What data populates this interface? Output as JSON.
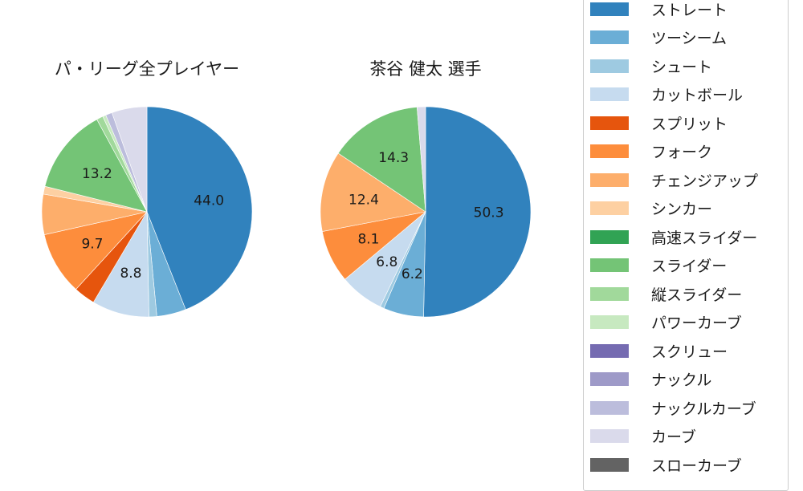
{
  "chart_data": [
    {
      "type": "pie",
      "title": "パ・リーグ全プレイヤー",
      "labels": [
        "ストレート",
        "ツーシーム",
        "シュート",
        "カットボール",
        "スプリット",
        "フォーク",
        "チェンジアップ",
        "シンカー",
        "高速スライダー",
        "スライダー",
        "縦スライダー",
        "パワーカーブ",
        "スクリュー",
        "ナックル",
        "ナックルカーブ",
        "カーブ",
        "スローカーブ"
      ],
      "values": [
        44.0,
        4.5,
        1.2,
        8.8,
        3.3,
        9.7,
        6.2,
        1.2,
        0.0,
        13.2,
        1.0,
        0.5,
        0.0,
        0.0,
        1.0,
        5.4,
        0.0
      ],
      "shown_labels": {
        "ストレート": "44.0",
        "カットボール": "8.8",
        "フォーク": "9.7",
        "スライダー": "13.2"
      },
      "start_angle": 90,
      "direction": "clockwise"
    },
    {
      "type": "pie",
      "title": "茶谷 健太  選手",
      "labels": [
        "ストレート",
        "ツーシーム",
        "シュート",
        "カットボール",
        "スプリット",
        "フォーク",
        "チェンジアップ",
        "シンカー",
        "高速スライダー",
        "スライダー",
        "縦スライダー",
        "パワーカーブ",
        "スクリュー",
        "ナックル",
        "ナックルカーブ",
        "カーブ",
        "スローカーブ"
      ],
      "values": [
        50.3,
        6.2,
        0.6,
        6.8,
        0.0,
        8.1,
        12.4,
        0.0,
        0.0,
        14.3,
        0.0,
        0.0,
        0.0,
        0.0,
        0.0,
        1.3,
        0.0
      ],
      "shown_labels": {
        "ストレート": "50.3",
        "ツーシーム": "6.2",
        "カットボール": "6.8",
        "フォーク": "8.1",
        "チェンジアップ": "12.4",
        "スライダー": "14.3"
      },
      "start_angle": 90,
      "direction": "clockwise"
    }
  ],
  "titles": {
    "left": "パ・リーグ全プレイヤー",
    "right": "茶谷 健太  選手"
  },
  "legend": [
    {
      "label": "ストレート",
      "color": "#3182bd"
    },
    {
      "label": "ツーシーム",
      "color": "#6baed6"
    },
    {
      "label": "シュート",
      "color": "#9ecae1"
    },
    {
      "label": "カットボール",
      "color": "#c6dbef"
    },
    {
      "label": "スプリット",
      "color": "#e6550d"
    },
    {
      "label": "フォーク",
      "color": "#fd8d3c"
    },
    {
      "label": "チェンジアップ",
      "color": "#fdae6b"
    },
    {
      "label": "シンカー",
      "color": "#fdd0a2"
    },
    {
      "label": "高速スライダー",
      "color": "#31a354"
    },
    {
      "label": "スライダー",
      "color": "#74c476"
    },
    {
      "label": "縦スライダー",
      "color": "#a1d99b"
    },
    {
      "label": "パワーカーブ",
      "color": "#c7e9c0"
    },
    {
      "label": "スクリュー",
      "color": "#756bb1"
    },
    {
      "label": "ナックル",
      "color": "#9e9ac8"
    },
    {
      "label": "ナックルカーブ",
      "color": "#bcbddc"
    },
    {
      "label": "カーブ",
      "color": "#dadaeb"
    },
    {
      "label": "スローカーブ",
      "color": "#636363"
    }
  ]
}
